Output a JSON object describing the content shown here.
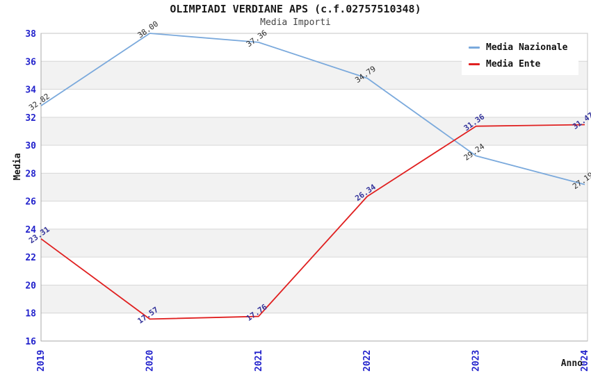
{
  "chart_data": {
    "type": "line",
    "title": "OLIMPIADI VERDIANE APS (c.f.02757510348)",
    "subtitle": "Media Importi",
    "xlabel": "Anno",
    "ylabel": "Media",
    "x": [
      "2019",
      "2020",
      "2021",
      "2022",
      "2023",
      "2024"
    ],
    "ylim": [
      16,
      38
    ],
    "ytick_step": 2,
    "grid": true,
    "legend_position": "top-right",
    "series": [
      {
        "name": "Media Nazionale",
        "color": "#7aa9dc",
        "values": [
          32.82,
          38.0,
          37.36,
          34.79,
          29.24,
          27.19
        ],
        "labels": [
          "32.82",
          "38.00",
          "37.36",
          "34.79",
          "29.24",
          "27.19"
        ],
        "label_color": "#2b2b2b",
        "label_bold": false
      },
      {
        "name": "Media Ente",
        "color": "#e02020",
        "values": [
          23.31,
          17.57,
          17.76,
          26.34,
          31.36,
          31.47
        ],
        "labels": [
          "23.31",
          "17.57",
          "17.76",
          "26.34",
          "31.36",
          "31.47"
        ],
        "label_color": "#34349b",
        "label_bold": true
      }
    ],
    "colors": {
      "tick_label": "#2222cc",
      "band": "#f2f2f2",
      "gridline": "#d6d6d6",
      "plot_border": "#c4c4c4",
      "axis_line": "#a8a8a8",
      "axis_title": "#1a1a1a"
    }
  }
}
